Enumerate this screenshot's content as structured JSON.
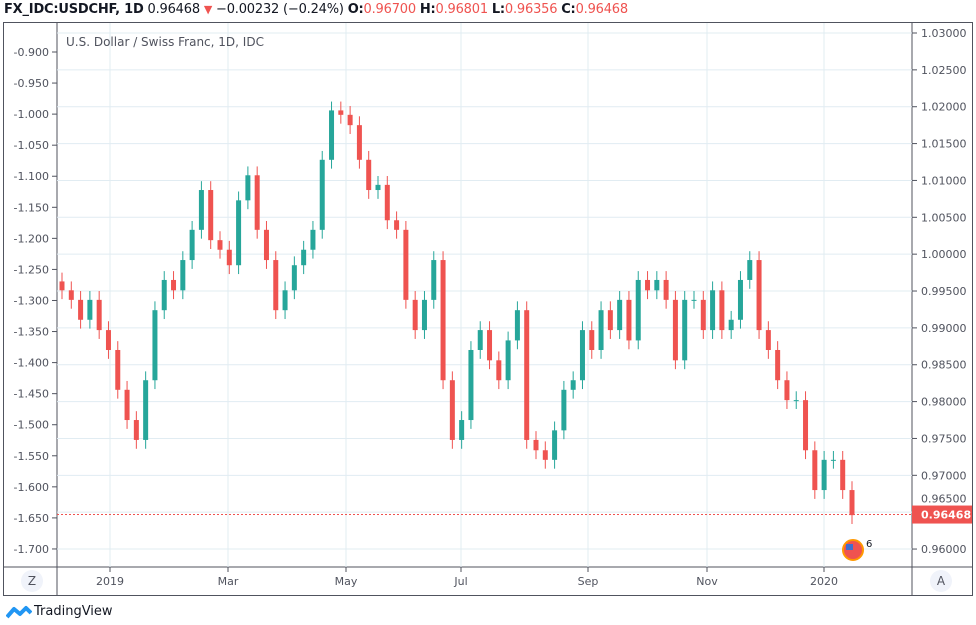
{
  "header": {
    "symbol": "FX_IDC:USDCHF, 1D",
    "last": "0.96468",
    "change": "−0.00232 (−0.24%)",
    "o_label": "O:",
    "o": "0.96700",
    "h_label": "H:",
    "h": "0.96801",
    "l_label": "L:",
    "l": "0.96356",
    "c_label": "C:",
    "c": "0.96468"
  },
  "buttons": {
    "left": "Z",
    "right": "A"
  },
  "logo": "TradingView",
  "badge_text": "6",
  "colors": {
    "up": "#26a69a",
    "down": "#ef5350",
    "grid": "#e1ecf2",
    "price_line": "#ef5350"
  },
  "chart_data": {
    "type": "candlestick",
    "title": "U.S. Dollar / Swiss Franc, 1D, IDC",
    "x_ticks": [
      "2019",
      "Mar",
      "May",
      "Jul",
      "Sep",
      "Nov",
      "2020"
    ],
    "right_axis": {
      "range": [
        0.955,
        1.03
      ],
      "ticks": [
        "1.03000",
        "1.02500",
        "1.02000",
        "1.01500",
        "1.01000",
        "1.00500",
        "1.00000",
        "0.99500",
        "0.99000",
        "0.98500",
        "0.98000",
        "0.97500",
        "0.97000",
        "0.96500",
        "0.96000"
      ]
    },
    "left_axis": {
      "ticks": [
        "-0.900",
        "-0.950",
        "-1.000",
        "-1.050",
        "-1.100",
        "-1.150",
        "-1.200",
        "-1.250",
        "-1.300",
        "-1.350",
        "-1.400",
        "-1.450",
        "-1.500",
        "-1.550",
        "-1.600",
        "-1.650",
        "-1.700"
      ]
    },
    "current_price": 0.96468,
    "current_price_label": "0.96468",
    "grid": true,
    "closes": [
      0.9951,
      0.9938,
      0.9911,
      0.9938,
      0.9897,
      0.987,
      0.9816,
      0.9775,
      0.9748,
      0.9829,
      0.9924,
      0.9965,
      0.9951,
      0.9992,
      1.0033,
      1.0087,
      1.0019,
      1.0006,
      0.9985,
      1.0073,
      1.0107,
      1.0033,
      0.9992,
      0.9924,
      0.9951,
      0.9985,
      1.0006,
      1.0033,
      1.0128,
      1.0195,
      1.0189,
      1.0175,
      1.0128,
      1.0087,
      1.0094,
      1.0046,
      1.0033,
      0.9938,
      0.9897,
      0.9938,
      0.9992,
      0.9829,
      0.9748,
      0.9775,
      0.987,
      0.9897,
      0.9856,
      0.9829,
      0.9883,
      0.9924,
      0.9748,
      0.9734,
      0.9721,
      0.9761,
      0.9816,
      0.9829,
      0.9897,
      0.987,
      0.9924,
      0.9897,
      0.9938,
      0.9883,
      0.9965,
      0.9951,
      0.9965,
      0.9938,
      0.9856,
      0.9938,
      0.9938,
      0.9897,
      0.9951,
      0.9897,
      0.9911,
      0.9965,
      0.9992,
      0.9897,
      0.987,
      0.9829,
      0.9802,
      0.9802,
      0.9734,
      0.968,
      0.9721,
      0.9721,
      0.968,
      0.9646
    ]
  }
}
